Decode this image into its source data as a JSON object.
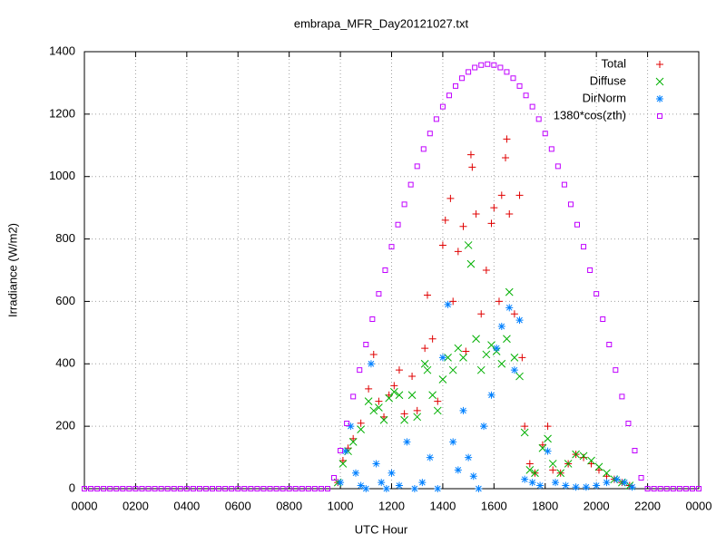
{
  "chart_data": {
    "type": "scatter",
    "title": "embrapa_MFR_Day20121027.txt",
    "xlabel": "UTC Hour",
    "ylabel": "Irradiance (W/m2)",
    "xlim": [
      0,
      24
    ],
    "ylim": [
      0,
      1400
    ],
    "xticks": [
      {
        "value": 0,
        "label": "0000"
      },
      {
        "value": 2,
        "label": "0200"
      },
      {
        "value": 4,
        "label": "0400"
      },
      {
        "value": 6,
        "label": "0600"
      },
      {
        "value": 8,
        "label": "0800"
      },
      {
        "value": 10,
        "label": "1000"
      },
      {
        "value": 12,
        "label": "1200"
      },
      {
        "value": 14,
        "label": "1400"
      },
      {
        "value": 16,
        "label": "1600"
      },
      {
        "value": 18,
        "label": "1800"
      },
      {
        "value": 20,
        "label": "2000"
      },
      {
        "value": 22,
        "label": "2200"
      },
      {
        "value": 24,
        "label": "0000"
      }
    ],
    "yticks": [
      0,
      200,
      400,
      600,
      800,
      1000,
      1200,
      1400
    ],
    "grid": true,
    "legend": "top-right",
    "series": [
      {
        "name": "Total",
        "color": "#e00000",
        "marker": "plus",
        "x": [
          9.9,
          10.1,
          10.3,
          10.5,
          10.8,
          11.1,
          11.3,
          11.5,
          11.7,
          11.9,
          12.1,
          12.3,
          12.5,
          12.8,
          13.0,
          13.3,
          13.4,
          13.6,
          13.8,
          14.0,
          14.1,
          14.3,
          14.4,
          14.6,
          14.8,
          14.9,
          15.1,
          15.15,
          15.3,
          15.5,
          15.7,
          15.9,
          16.0,
          16.2,
          16.3,
          16.45,
          16.5,
          16.6,
          16.8,
          17.0,
          17.1,
          17.2,
          17.4,
          17.6,
          17.9,
          18.1,
          18.3,
          18.6,
          18.9,
          19.2,
          19.5,
          19.8,
          20.1,
          20.4,
          20.7,
          21.0,
          21.3
        ],
        "values": [
          20,
          90,
          130,
          160,
          210,
          320,
          430,
          280,
          230,
          300,
          330,
          380,
          240,
          360,
          250,
          450,
          620,
          480,
          280,
          780,
          860,
          930,
          600,
          760,
          840,
          440,
          1070,
          1030,
          880,
          560,
          700,
          850,
          900,
          600,
          940,
          1060,
          1120,
          880,
          560,
          940,
          420,
          200,
          80,
          50,
          140,
          200,
          60,
          50,
          80,
          110,
          100,
          80,
          60,
          40,
          30,
          20,
          10
        ]
      },
      {
        "name": "Diffuse",
        "color": "#00b000",
        "marker": "cross",
        "x": [
          9.9,
          10.1,
          10.3,
          10.5,
          10.8,
          11.1,
          11.3,
          11.5,
          11.7,
          11.9,
          12.1,
          12.3,
          12.5,
          12.8,
          13.0,
          13.3,
          13.4,
          13.6,
          13.8,
          14.0,
          14.2,
          14.4,
          14.6,
          14.8,
          15.0,
          15.1,
          15.3,
          15.5,
          15.7,
          15.9,
          16.1,
          16.3,
          16.5,
          16.6,
          16.8,
          17.0,
          17.2,
          17.4,
          17.6,
          17.9,
          18.1,
          18.3,
          18.6,
          18.9,
          19.2,
          19.5,
          19.8,
          20.1,
          20.4,
          20.7,
          21.0,
          21.3
        ],
        "values": [
          20,
          80,
          120,
          150,
          190,
          280,
          250,
          260,
          220,
          290,
          310,
          300,
          220,
          300,
          230,
          400,
          380,
          300,
          250,
          350,
          420,
          380,
          450,
          420,
          780,
          720,
          480,
          380,
          430,
          460,
          440,
          400,
          480,
          630,
          420,
          360,
          180,
          60,
          50,
          130,
          160,
          80,
          50,
          80,
          110,
          105,
          90,
          70,
          50,
          30,
          20,
          10
        ]
      },
      {
        "name": "DirNorm",
        "color": "#0080ff",
        "marker": "star",
        "x": [
          10.0,
          10.2,
          10.4,
          10.6,
          10.8,
          11.0,
          11.2,
          11.4,
          11.6,
          11.8,
          12.0,
          12.3,
          12.6,
          12.9,
          13.2,
          13.5,
          13.8,
          14.0,
          14.2,
          14.4,
          14.6,
          14.8,
          15.0,
          15.2,
          15.4,
          15.6,
          15.9,
          16.1,
          16.3,
          16.6,
          16.8,
          17.0,
          17.2,
          17.5,
          17.8,
          18.1,
          18.4,
          18.8,
          19.2,
          19.6,
          20.0,
          20.4,
          20.8,
          21.1,
          21.4
        ],
        "values": [
          20,
          120,
          200,
          50,
          10,
          0,
          400,
          80,
          20,
          0,
          50,
          10,
          150,
          0,
          20,
          100,
          0,
          420,
          590,
          150,
          60,
          250,
          100,
          40,
          0,
          200,
          300,
          450,
          520,
          580,
          380,
          540,
          30,
          20,
          10,
          120,
          20,
          10,
          5,
          5,
          10,
          20,
          30,
          20,
          5
        ]
      },
      {
        "name": "1380*cos(zth)",
        "color": "#c000ff",
        "marker": "square",
        "x": [
          0,
          0.25,
          0.5,
          0.75,
          1,
          1.25,
          1.5,
          1.75,
          2,
          2.25,
          2.5,
          2.75,
          3,
          3.25,
          3.5,
          3.75,
          4,
          4.25,
          4.5,
          4.75,
          5,
          5.25,
          5.5,
          5.75,
          6,
          6.25,
          6.5,
          6.75,
          7,
          7.25,
          7.5,
          7.75,
          8,
          8.25,
          8.5,
          8.75,
          9,
          9.25,
          9.5,
          9.75,
          10,
          10.25,
          10.5,
          10.75,
          11,
          11.25,
          11.5,
          11.75,
          12,
          12.25,
          12.5,
          12.75,
          13,
          13.25,
          13.5,
          13.75,
          14,
          14.25,
          14.5,
          14.75,
          15,
          15.25,
          15.5,
          15.75,
          16,
          16.25,
          16.5,
          16.75,
          17,
          17.25,
          17.5,
          17.75,
          18,
          18.25,
          18.5,
          18.75,
          19,
          19.25,
          19.5,
          19.75,
          20,
          20.25,
          20.5,
          20.75,
          21,
          21.25,
          21.5,
          21.75,
          22,
          22.25,
          22.5,
          22.75,
          23,
          23.25,
          23.5,
          23.75,
          24
        ],
        "values": [
          0,
          0,
          0,
          0,
          0,
          0,
          0,
          0,
          0,
          0,
          0,
          0,
          0,
          0,
          0,
          0,
          0,
          0,
          0,
          0,
          0,
          0,
          0,
          0,
          0,
          0,
          0,
          0,
          0,
          0,
          0,
          0,
          0,
          0,
          0,
          0,
          0,
          0,
          0,
          35,
          122,
          209,
          295,
          380,
          462,
          543,
          624,
          700,
          775,
          846,
          911,
          974,
          1033,
          1088,
          1138,
          1184,
          1224,
          1260,
          1290,
          1315,
          1335,
          1349,
          1357,
          1360,
          1357,
          1349,
          1335,
          1315,
          1290,
          1260,
          1224,
          1184,
          1138,
          1088,
          1033,
          974,
          911,
          846,
          775,
          700,
          624,
          543,
          462,
          380,
          295,
          209,
          122,
          35,
          0,
          0,
          0,
          0,
          0,
          0,
          0,
          0,
          0
        ]
      }
    ]
  }
}
